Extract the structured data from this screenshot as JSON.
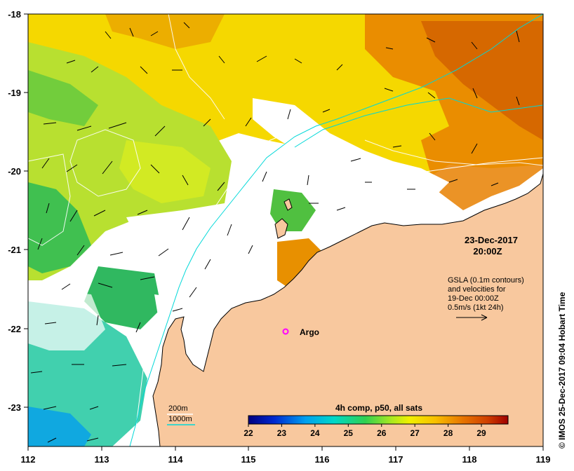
{
  "map": {
    "lon_range": [
      112,
      119
    ],
    "lat_range": [
      -23.5,
      -18
    ],
    "lon_ticks": [
      "112",
      "113",
      "114",
      "115",
      "116",
      "117",
      "118",
      "119"
    ],
    "lat_ticks": [
      "-18",
      "-19",
      "-20",
      "-21",
      "-22",
      "-23"
    ],
    "land_color": "#f8c89e",
    "ocean_color": "#ffffff"
  },
  "date_label": {
    "date": "23-Dec-2017",
    "time": "20:00Z"
  },
  "gsla_note": {
    "line1": "GSLA (0.1m contours)",
    "line2": "and velocities for",
    "line3": "19-Dec 00:00Z",
    "line4": "0.5m/s (1kt 24h)"
  },
  "argo": {
    "label": "Argo",
    "lon": 115.47,
    "lat": -22.04,
    "color": "#ff00ff"
  },
  "bathy_legend": {
    "iso200": "200m",
    "iso1000": "1000m",
    "iso200_color": "#ffffff",
    "iso1000_color": "#00d8d8"
  },
  "colorbar": {
    "title": "4h comp, p50, all sats",
    "tick_labels": [
      "22",
      "23",
      "24",
      "25",
      "26",
      "27",
      "28",
      "29"
    ],
    "min": 22,
    "max": 29.8
  },
  "credit": "© IMOS 25-Dec-2017 09:04 Hobart Time"
}
